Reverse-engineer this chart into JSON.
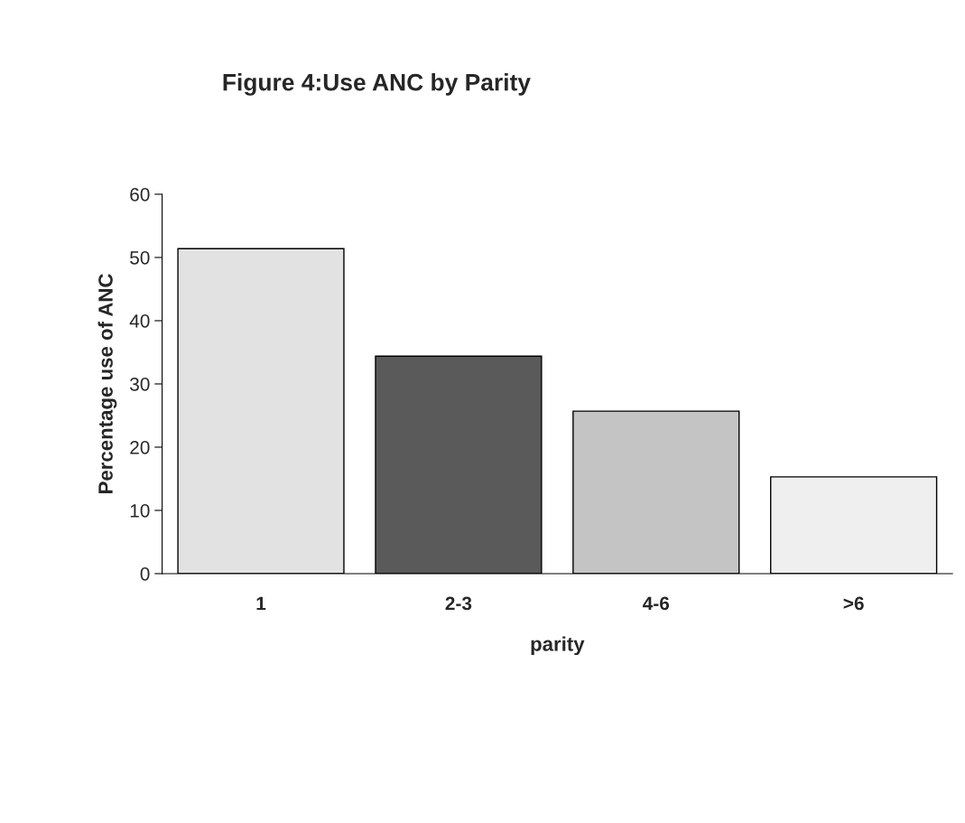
{
  "chart_data": {
    "type": "bar",
    "title": "Figure 4:Use ANC by Parity",
    "xlabel": "parity",
    "ylabel": "Percentage use of ANC",
    "categories": [
      "1",
      "2-3",
      "4-6",
      ">6"
    ],
    "values": [
      51.4,
      34.4,
      25.7,
      15.3
    ],
    "colors": [
      "#e2e2e2",
      "#5a5a5a",
      "#c4c4c4",
      "#efefef"
    ],
    "ylim": [
      0,
      60
    ],
    "yticks": [
      0,
      10,
      20,
      30,
      40,
      50,
      60
    ],
    "grid": false
  }
}
